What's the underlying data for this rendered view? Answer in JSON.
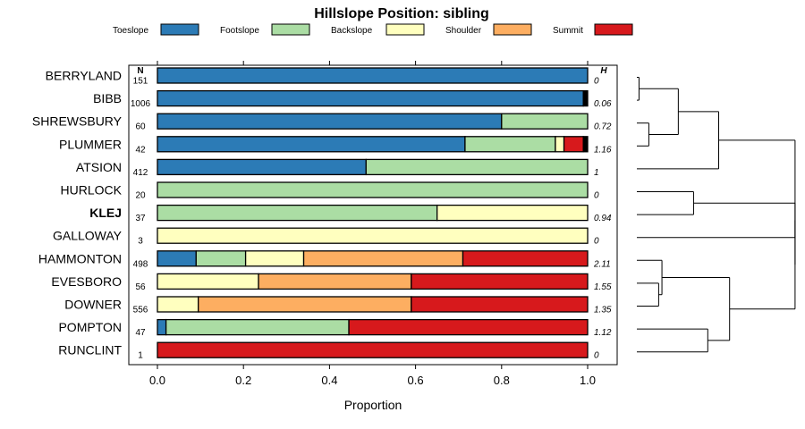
{
  "chart_data": {
    "type": "bar",
    "orientation": "horizontal-stacked",
    "title": "Hillslope Position: sibling",
    "xlabel": "Proportion",
    "xlim": [
      0,
      1
    ],
    "xticks": [
      "0.0",
      "0.2",
      "0.4",
      "0.6",
      "0.8",
      "1.0"
    ],
    "xtick_values": [
      0,
      0.2,
      0.4,
      0.6,
      0.8,
      1.0
    ],
    "n_header": "N",
    "h_header": "H",
    "legend_position": "top",
    "categories": [
      "BERRYLAND",
      "BIBB",
      "SHREWSBURY",
      "PLUMMER",
      "ATSION",
      "HURLOCK",
      "KLEJ",
      "GALLOWAY",
      "HAMMONTON",
      "EVESBORO",
      "DOWNER",
      "POMPTON",
      "RUNCLINT"
    ],
    "highlighted": "KLEJ",
    "n": [
      "151",
      "1006",
      "60",
      "42",
      "412",
      "20",
      "37",
      "3",
      "498",
      "56",
      "556",
      "47",
      "1"
    ],
    "h": [
      "0",
      "0.06",
      "0.72",
      "1.16",
      "1",
      "0",
      "0.94",
      "0",
      "2.11",
      "1.55",
      "1.35",
      "1.12",
      "0"
    ],
    "series": [
      {
        "name": "Toeslope",
        "color": "#2c7bb6",
        "values": [
          1.0,
          0.99,
          0.8,
          0.715,
          0.485,
          0,
          0,
          0,
          0.09,
          0,
          0,
          0.02,
          0
        ]
      },
      {
        "name": "Footslope",
        "color": "#abdda4",
        "values": [
          0,
          0,
          0.2,
          0.21,
          0.515,
          1.0,
          0.65,
          0,
          0.115,
          0,
          0,
          0.425,
          0
        ]
      },
      {
        "name": "Backslope",
        "color": "#ffffbf",
        "values": [
          0,
          0,
          0,
          0.02,
          0,
          0,
          0.35,
          1.0,
          0.135,
          0.235,
          0.095,
          0,
          0
        ]
      },
      {
        "name": "Shoulder",
        "color": "#fdae61",
        "values": [
          0,
          0,
          0,
          0,
          0,
          0,
          0,
          0,
          0.37,
          0.355,
          0.495,
          0,
          0
        ]
      },
      {
        "name": "Summit",
        "color": "#d7191c",
        "values": [
          0,
          0,
          0,
          0.045,
          0,
          0,
          0,
          0,
          0.29,
          0.41,
          0.41,
          0.555,
          1.0
        ]
      }
    ],
    "other_color": "#000000",
    "dendrogram": {
      "leaves": [
        "BERRYLAND",
        "BIBB",
        "SHREWSBURY",
        "PLUMMER",
        "ATSION",
        "HURLOCK",
        "KLEJ",
        "GALLOWAY",
        "HAMMONTON",
        "EVESBORO",
        "DOWNER",
        "POMPTON",
        "RUNCLINT"
      ],
      "merges": [
        {
          "a": "L0",
          "b": "L1",
          "h": 0.02
        },
        {
          "a": "L2",
          "b": "L3",
          "h": 0.11
        },
        {
          "a": "N0",
          "b": "N1",
          "h": 0.38
        },
        {
          "a": "N2",
          "b": "L4",
          "h": 0.75
        },
        {
          "a": "L5",
          "b": "L6",
          "h": 0.52
        },
        {
          "a": "N4",
          "b": "L7",
          "h": 1.45
        },
        {
          "a": "L9",
          "b": "L10",
          "h": 0.2
        },
        {
          "a": "L8",
          "b": "N6",
          "h": 0.23
        },
        {
          "a": "L11",
          "b": "L12",
          "h": 0.65
        },
        {
          "a": "N7",
          "b": "N8",
          "h": 0.85
        },
        {
          "a": "N5",
          "b": "N9",
          "h": 1.45
        },
        {
          "a": "N3",
          "b": "N10",
          "h": 1.45
        }
      ]
    }
  }
}
